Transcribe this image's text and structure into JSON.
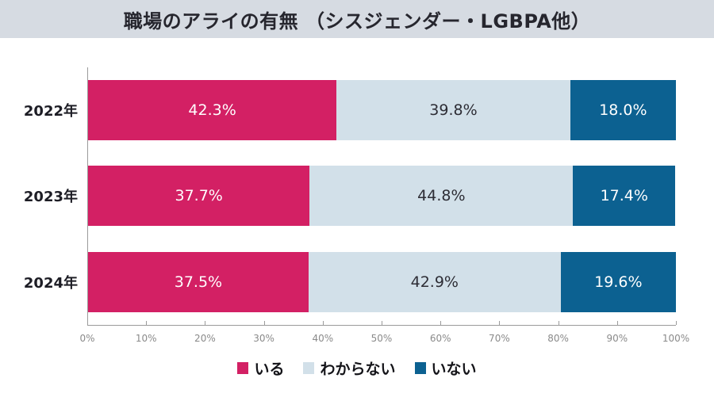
{
  "title": "職場のアライの有無 （シスジェンダー・LGBPA他）",
  "colors": {
    "banner_bg": "#d6dbe2",
    "title_text": "#26262e",
    "axis_line": "#9b9b9b",
    "tick_text": "#8a8a8a"
  },
  "chart_data": {
    "type": "bar",
    "orientation": "horizontal",
    "stacked": true,
    "title": "職場のアライの有無 （シスジェンダー・LGBPA他）",
    "categories": [
      "2022年",
      "2023年",
      "2024年"
    ],
    "series": [
      {
        "name": "いる",
        "color": "#d32064",
        "label_color": "#ffffff",
        "values": [
          42.3,
          37.7,
          37.5
        ]
      },
      {
        "name": "わからない",
        "color": "#d2e0e9",
        "label_color": "#2d2d35",
        "values": [
          39.8,
          44.8,
          42.9
        ]
      },
      {
        "name": "いない",
        "color": "#0c6191",
        "label_color": "#ffffff",
        "values": [
          18.0,
          17.4,
          19.6
        ]
      }
    ],
    "value_suffix": "%",
    "xlim": [
      0,
      100
    ],
    "x_ticks": [
      "0%",
      "10%",
      "20%",
      "30%",
      "40%",
      "50%",
      "60%",
      "70%",
      "80%",
      "90%",
      "100%"
    ],
    "grid": false,
    "legend_position": "bottom"
  }
}
